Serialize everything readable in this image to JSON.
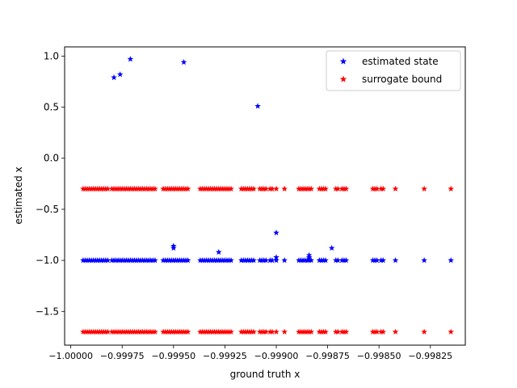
{
  "chart_data": {
    "type": "scatter",
    "xlabel": "ground truth x",
    "ylabel": "estimated x",
    "xlim": [
      -1.00003,
      -0.99808
    ],
    "ylim": [
      -1.83,
      1.09
    ],
    "xticks": [
      -1.0,
      -0.99975,
      -0.9995,
      -0.99925,
      -0.999,
      -0.99875,
      -0.9985,
      -0.99825
    ],
    "xtick_labels": [
      "−1.00000",
      "−0.99975",
      "−0.99950",
      "−0.99925",
      "−0.99900",
      "−0.99875",
      "−0.99850",
      "−0.99825"
    ],
    "yticks": [
      1.0,
      0.5,
      0.0,
      -0.5,
      -1.0,
      -1.5
    ],
    "ytick_labels": [
      "1.0",
      "0.5",
      "0.0",
      "−0.5",
      "−1.0",
      "−1.5"
    ],
    "grid": false,
    "legend_position": "top-right",
    "marker": "star",
    "series": [
      {
        "name": "estimated state",
        "color": "#0000ff",
        "points": [
          [
            -0.99994,
            -1.0
          ],
          [
            -0.99993,
            -1.0
          ],
          [
            -0.99992,
            -1.0
          ],
          [
            -0.99991,
            -1.0
          ],
          [
            -0.9999,
            -1.0
          ],
          [
            -0.99989,
            -1.0
          ],
          [
            -0.99988,
            -1.0
          ],
          [
            -0.99987,
            -1.0
          ],
          [
            -0.99986,
            -1.0
          ],
          [
            -0.99985,
            -1.0
          ],
          [
            -0.99984,
            -1.0
          ],
          [
            -0.99983,
            -1.0
          ],
          [
            -0.99982,
            -1.0
          ],
          [
            -0.9998,
            -1.0
          ],
          [
            -0.99979,
            -1.0
          ],
          [
            -0.99978,
            -1.0
          ],
          [
            -0.99977,
            -1.0
          ],
          [
            -0.99976,
            -1.0
          ],
          [
            -0.99975,
            -1.0
          ],
          [
            -0.99974,
            -1.0
          ],
          [
            -0.99973,
            -1.0
          ],
          [
            -0.99972,
            -1.0
          ],
          [
            -0.99971,
            -1.0
          ],
          [
            -0.9997,
            -1.0
          ],
          [
            -0.99969,
            -1.0
          ],
          [
            -0.99968,
            -1.0
          ],
          [
            -0.99967,
            -1.0
          ],
          [
            -0.99966,
            -1.0
          ],
          [
            -0.99965,
            -1.0
          ],
          [
            -0.99964,
            -1.0
          ],
          [
            -0.99963,
            -1.0
          ],
          [
            -0.99962,
            -1.0
          ],
          [
            -0.99961,
            -1.0
          ],
          [
            -0.9996,
            -1.0
          ],
          [
            -0.99959,
            -1.0
          ],
          [
            -0.99955,
            -1.0
          ],
          [
            -0.99954,
            -1.0
          ],
          [
            -0.99953,
            -1.0
          ],
          [
            -0.99952,
            -1.0
          ],
          [
            -0.99951,
            -1.0
          ],
          [
            -0.9995,
            -1.0
          ],
          [
            -0.99949,
            -1.0
          ],
          [
            -0.99948,
            -1.0
          ],
          [
            -0.99947,
            -1.0
          ],
          [
            -0.99946,
            -1.0
          ],
          [
            -0.99945,
            -1.0
          ],
          [
            -0.99944,
            -1.0
          ],
          [
            -0.99943,
            -1.0
          ],
          [
            -0.99937,
            -1.0
          ],
          [
            -0.99936,
            -1.0
          ],
          [
            -0.99935,
            -1.0
          ],
          [
            -0.99934,
            -1.0
          ],
          [
            -0.99933,
            -1.0
          ],
          [
            -0.99932,
            -1.0
          ],
          [
            -0.99931,
            -1.0
          ],
          [
            -0.9993,
            -1.0
          ],
          [
            -0.99929,
            -1.0
          ],
          [
            -0.99928,
            -1.0
          ],
          [
            -0.99927,
            -1.0
          ],
          [
            -0.99926,
            -1.0
          ],
          [
            -0.99925,
            -1.0
          ],
          [
            -0.99924,
            -1.0
          ],
          [
            -0.99923,
            -1.0
          ],
          [
            -0.99922,
            -1.0
          ],
          [
            -0.99917,
            -1.0
          ],
          [
            -0.99916,
            -1.0
          ],
          [
            -0.99915,
            -1.0
          ],
          [
            -0.99914,
            -1.0
          ],
          [
            -0.99913,
            -1.0
          ],
          [
            -0.99912,
            -1.0
          ],
          [
            -0.99911,
            -1.0
          ],
          [
            -0.99908,
            -1.0
          ],
          [
            -0.99907,
            -1.0
          ],
          [
            -0.99906,
            -1.0
          ],
          [
            -0.99905,
            -1.0
          ],
          [
            -0.99903,
            -1.0
          ],
          [
            -0.99902,
            -1.0
          ],
          [
            -0.999,
            -1.0
          ],
          [
            -0.99896,
            -1.0
          ],
          [
            -0.99889,
            -1.0
          ],
          [
            -0.99888,
            -1.0
          ],
          [
            -0.99887,
            -1.0
          ],
          [
            -0.99886,
            -1.0
          ],
          [
            -0.99885,
            -1.0
          ],
          [
            -0.99884,
            -1.0
          ],
          [
            -0.99883,
            -1.0
          ],
          [
            -0.99879,
            -1.0
          ],
          [
            -0.99878,
            -1.0
          ],
          [
            -0.99877,
            -1.0
          ],
          [
            -0.99876,
            -1.0
          ],
          [
            -0.99871,
            -1.0
          ],
          [
            -0.9987,
            -1.0
          ],
          [
            -0.99868,
            -1.0
          ],
          [
            -0.99867,
            -1.0
          ],
          [
            -0.99866,
            -1.0
          ],
          [
            -0.99853,
            -1.0
          ],
          [
            -0.99852,
            -1.0
          ],
          [
            -0.99851,
            -1.0
          ],
          [
            -0.99849,
            -1.0
          ],
          [
            -0.99848,
            -1.0
          ],
          [
            -0.99842,
            -1.0
          ],
          [
            -0.99828,
            -1.0
          ],
          [
            -0.99815,
            -1.0
          ],
          [
            -0.99979,
            0.79
          ],
          [
            -0.99976,
            0.82
          ],
          [
            -0.99971,
            0.97
          ],
          [
            -0.99945,
            0.94
          ],
          [
            -0.99909,
            0.51
          ],
          [
            -0.9995,
            -0.86
          ],
          [
            -0.9995,
            -0.88
          ],
          [
            -0.99928,
            -0.92
          ],
          [
            -0.999,
            -0.73
          ],
          [
            -0.999,
            -0.97
          ],
          [
            -0.99884,
            -0.95
          ],
          [
            -0.99884,
            -0.97
          ],
          [
            -0.99873,
            -0.88
          ]
        ]
      },
      {
        "name": "surrogate bound",
        "color": "#ff0000",
        "upper": -0.3,
        "lower": -1.7,
        "x": [
          -0.99994,
          -0.99993,
          -0.99992,
          -0.99991,
          -0.9999,
          -0.99989,
          -0.99988,
          -0.99987,
          -0.99986,
          -0.99985,
          -0.99984,
          -0.99983,
          -0.99982,
          -0.9998,
          -0.99979,
          -0.99978,
          -0.99977,
          -0.99976,
          -0.99975,
          -0.99974,
          -0.99973,
          -0.99972,
          -0.99971,
          -0.9997,
          -0.99969,
          -0.99968,
          -0.99967,
          -0.99966,
          -0.99965,
          -0.99964,
          -0.99963,
          -0.99962,
          -0.99961,
          -0.9996,
          -0.99959,
          -0.99955,
          -0.99954,
          -0.99953,
          -0.99952,
          -0.99951,
          -0.9995,
          -0.99949,
          -0.99948,
          -0.99947,
          -0.99946,
          -0.99945,
          -0.99944,
          -0.99943,
          -0.99937,
          -0.99936,
          -0.99935,
          -0.99934,
          -0.99933,
          -0.99932,
          -0.99931,
          -0.9993,
          -0.99929,
          -0.99928,
          -0.99927,
          -0.99926,
          -0.99925,
          -0.99924,
          -0.99923,
          -0.99922,
          -0.99917,
          -0.99916,
          -0.99915,
          -0.99914,
          -0.99913,
          -0.99912,
          -0.99911,
          -0.99908,
          -0.99907,
          -0.99906,
          -0.99905,
          -0.99903,
          -0.99902,
          -0.999,
          -0.99896,
          -0.99889,
          -0.99888,
          -0.99887,
          -0.99886,
          -0.99885,
          -0.99884,
          -0.99883,
          -0.99879,
          -0.99878,
          -0.99877,
          -0.99876,
          -0.99871,
          -0.9987,
          -0.99868,
          -0.99867,
          -0.99866,
          -0.99853,
          -0.99852,
          -0.99851,
          -0.99849,
          -0.99848,
          -0.99842,
          -0.99828,
          -0.99815
        ]
      }
    ]
  }
}
